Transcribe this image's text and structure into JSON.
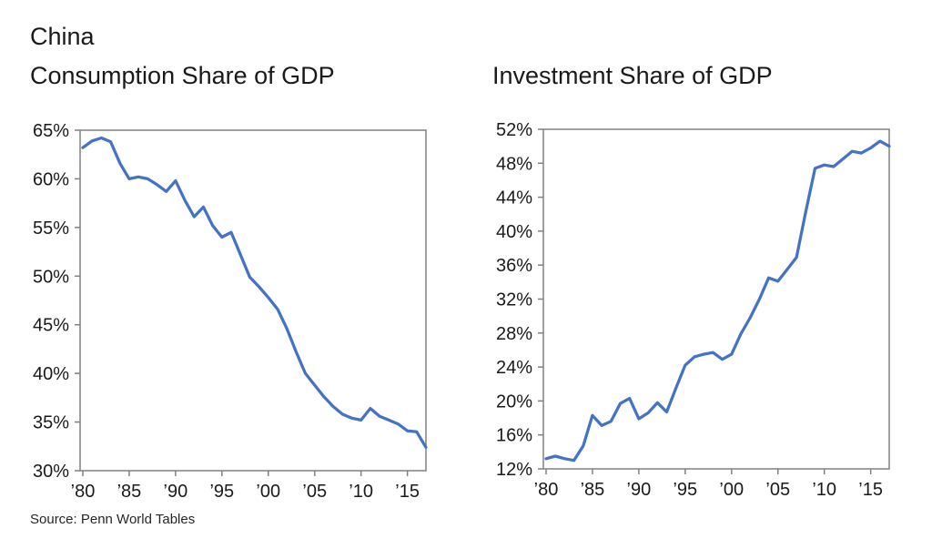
{
  "page": {
    "title": "China",
    "source": "Source: Penn World Tables"
  },
  "style": {
    "line_color": "#4472C4",
    "axis_color": "#808080",
    "text_color": "#1a1a1a",
    "background": "#ffffff"
  },
  "chart_data": [
    {
      "type": "line",
      "title": "Consumption Share of GDP",
      "series_name": "China consumption share of GDP",
      "x": [
        1980,
        1981,
        1982,
        1983,
        1984,
        1985,
        1986,
        1987,
        1988,
        1989,
        1990,
        1991,
        1992,
        1993,
        1994,
        1995,
        1996,
        1997,
        1998,
        1999,
        2000,
        2001,
        2002,
        2003,
        2004,
        2005,
        2006,
        2007,
        2008,
        2009,
        2010,
        2011,
        2012,
        2013,
        2014,
        2015,
        2016,
        2017
      ],
      "values": [
        63.2,
        63.9,
        64.2,
        63.8,
        61.6,
        60.0,
        60.2,
        60.0,
        59.4,
        58.7,
        59.8,
        57.8,
        56.1,
        57.1,
        55.2,
        54.0,
        54.5,
        52.2,
        49.9,
        48.9,
        47.8,
        46.6,
        44.6,
        42.2,
        40.0,
        38.8,
        37.6,
        36.6,
        35.8,
        35.4,
        35.2,
        36.4,
        35.6,
        35.2,
        34.8,
        34.1,
        34.0,
        32.4
      ],
      "xlabel": "",
      "ylabel": "",
      "xlim": [
        1980,
        2017
      ],
      "ylim": [
        30,
        65
      ],
      "ytick_step": 5,
      "ytick_labels": [
        "65%",
        "60%",
        "55%",
        "50%",
        "45%",
        "40%",
        "35%",
        "30%"
      ],
      "xtick_years": [
        1980,
        1985,
        1990,
        1995,
        2000,
        2005,
        2010,
        2015
      ],
      "xtick_labels": [
        "’80",
        "’85",
        "’90",
        "’95",
        "’00",
        "’05",
        "’10",
        "’15"
      ],
      "grid": false,
      "legend": "none"
    },
    {
      "type": "line",
      "title": "Investment Share of GDP",
      "series_name": "China investment share of GDP",
      "x": [
        1980,
        1981,
        1982,
        1983,
        1984,
        1985,
        1986,
        1987,
        1988,
        1989,
        1990,
        1991,
        1992,
        1993,
        1994,
        1995,
        1996,
        1997,
        1998,
        1999,
        2000,
        2001,
        2002,
        2003,
        2004,
        2005,
        2006,
        2007,
        2008,
        2009,
        2010,
        2011,
        2012,
        2013,
        2014,
        2015,
        2016,
        2017
      ],
      "values": [
        13.2,
        13.5,
        13.2,
        13.0,
        14.7,
        18.3,
        17.1,
        17.6,
        19.7,
        20.3,
        17.9,
        18.6,
        19.8,
        18.7,
        21.5,
        24.2,
        25.2,
        25.5,
        25.7,
        24.9,
        25.5,
        27.9,
        29.8,
        32.0,
        34.5,
        34.1,
        35.5,
        36.9,
        42.3,
        47.4,
        47.8,
        47.6,
        48.5,
        49.4,
        49.2,
        49.8,
        50.6,
        50.0
      ],
      "xlabel": "",
      "ylabel": "",
      "xlim": [
        1980,
        2017
      ],
      "ylim": [
        12,
        52
      ],
      "ytick_step": 4,
      "ytick_labels": [
        "52%",
        "48%",
        "44%",
        "40%",
        "36%",
        "32%",
        "28%",
        "24%",
        "20%",
        "16%",
        "12%"
      ],
      "xtick_years": [
        1980,
        1985,
        1990,
        1995,
        2000,
        2005,
        2010,
        2015
      ],
      "xtick_labels": [
        "’80",
        "’85",
        "’90",
        "’95",
        "’00",
        "’05",
        "’10",
        "’15"
      ],
      "grid": false,
      "legend": "none"
    }
  ]
}
